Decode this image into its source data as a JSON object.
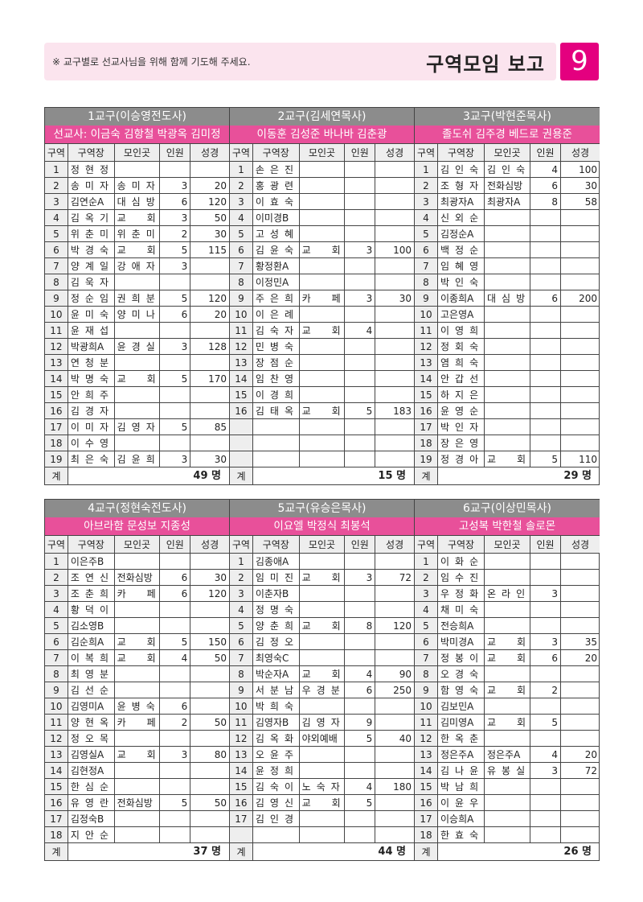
{
  "header": {
    "notice": "※ 교구별로 선교사님을 위해 함께 기도해 주세요.",
    "title": "구역모임 보고",
    "page_number": "9"
  },
  "columns": [
    "구역",
    "구역장",
    "모인곳",
    "인원",
    "성경"
  ],
  "total_label": "계",
  "blocks": [
    {
      "rows_shown": 19,
      "sections": [
        {
          "title": "1교구(이승영전도사)",
          "missionaries": "선교사: 이금숙 김항철 박광옥 김미정",
          "total": "49 명",
          "rows": [
            [
              "1",
              "정현정",
              "",
              "",
              ""
            ],
            [
              "2",
              "송미자",
              "송미자",
              "3",
              "20"
            ],
            [
              "3",
              "김연순A",
              "대심방",
              "6",
              "120"
            ],
            [
              "4",
              "김옥기",
              "교회",
              "3",
              "50"
            ],
            [
              "5",
              "위춘미",
              "위춘미",
              "2",
              "30"
            ],
            [
              "6",
              "박경숙",
              "교회",
              "5",
              "115"
            ],
            [
              "7",
              "양계일",
              "강애자",
              "3",
              ""
            ],
            [
              "8",
              "김욱자",
              "",
              "",
              ""
            ],
            [
              "9",
              "정순임",
              "권희분",
              "5",
              "120"
            ],
            [
              "10",
              "윤미숙",
              "양미나",
              "6",
              "20"
            ],
            [
              "11",
              "윤재섭",
              "",
              "",
              ""
            ],
            [
              "12",
              "박광희A",
              "윤경실",
              "3",
              "128"
            ],
            [
              "13",
              "연청분",
              "",
              "",
              ""
            ],
            [
              "14",
              "박명숙",
              "교회",
              "5",
              "170"
            ],
            [
              "15",
              "안희주",
              "",
              "",
              ""
            ],
            [
              "16",
              "김경자",
              "",
              "",
              ""
            ],
            [
              "17",
              "이미자",
              "김영자",
              "5",
              "85"
            ],
            [
              "18",
              "이수영",
              "",
              "",
              ""
            ],
            [
              "19",
              "최은숙",
              "김윤희",
              "3",
              "30"
            ]
          ]
        },
        {
          "title": "2교구(김세연목사)",
          "missionaries": "이동훈 김성준 바나바 김춘광",
          "total": "15 명",
          "rows": [
            [
              "1",
              "손은진",
              "",
              "",
              ""
            ],
            [
              "2",
              "홍광련",
              "",
              "",
              ""
            ],
            [
              "3",
              "이효숙",
              "",
              "",
              ""
            ],
            [
              "4",
              "이미경B",
              "",
              "",
              ""
            ],
            [
              "5",
              "고성혜",
              "",
              "",
              ""
            ],
            [
              "6",
              "김윤숙",
              "교회",
              "3",
              "100"
            ],
            [
              "7",
              "황정환A",
              "",
              "",
              ""
            ],
            [
              "8",
              "이정민A",
              "",
              "",
              ""
            ],
            [
              "9",
              "주은희",
              "카페",
              "3",
              "30"
            ],
            [
              "10",
              "이은례",
              "",
              "",
              ""
            ],
            [
              "11",
              "김숙자",
              "교회",
              "4",
              ""
            ],
            [
              "12",
              "민병숙",
              "",
              "",
              ""
            ],
            [
              "13",
              "장점순",
              "",
              "",
              ""
            ],
            [
              "14",
              "임찬영",
              "",
              "",
              ""
            ],
            [
              "15",
              "이경희",
              "",
              "",
              ""
            ],
            [
              "16",
              "김태옥",
              "교회",
              "5",
              "183"
            ]
          ]
        },
        {
          "title": "3교구(박현준목사)",
          "missionaries": "졸도쉬 김주경 베드로 권용준",
          "total": "29 명",
          "rows": [
            [
              "1",
              "김인숙",
              "김인숙",
              "4",
              "100"
            ],
            [
              "2",
              "조형자",
              "전화심방",
              "6",
              "30"
            ],
            [
              "3",
              "최광자A",
              "최광자A",
              "8",
              "58"
            ],
            [
              "4",
              "신외순",
              "",
              "",
              ""
            ],
            [
              "5",
              "김정순A",
              "",
              "",
              ""
            ],
            [
              "6",
              "백정순",
              "",
              "",
              ""
            ],
            [
              "7",
              "임혜영",
              "",
              "",
              ""
            ],
            [
              "8",
              "박인숙",
              "",
              "",
              ""
            ],
            [
              "9",
              "이종희A",
              "대심방",
              "6",
              "200"
            ],
            [
              "10",
              "고은영A",
              "",
              "",
              ""
            ],
            [
              "11",
              "이영희",
              "",
              "",
              ""
            ],
            [
              "12",
              "정회숙",
              "",
              "",
              ""
            ],
            [
              "13",
              "염희숙",
              "",
              "",
              ""
            ],
            [
              "14",
              "안갑선",
              "",
              "",
              ""
            ],
            [
              "15",
              "하지은",
              "",
              "",
              ""
            ],
            [
              "16",
              "윤영순",
              "",
              "",
              ""
            ],
            [
              "17",
              "박인자",
              "",
              "",
              ""
            ],
            [
              "18",
              "장은영",
              "",
              "",
              ""
            ],
            [
              "19",
              "정경아",
              "교회",
              "5",
              "110"
            ]
          ]
        }
      ]
    },
    {
      "rows_shown": 18,
      "sections": [
        {
          "title": "4교구(정현숙전도사)",
          "missionaries": "아브라함  문성보 지종성",
          "total": "37 명",
          "rows": [
            [
              "1",
              "이은주B",
              "",
              "",
              ""
            ],
            [
              "2",
              "조연신",
              "전화심방",
              "6",
              "30"
            ],
            [
              "3",
              "조춘희",
              "카페",
              "6",
              "120"
            ],
            [
              "4",
              "황덕이",
              "",
              "",
              ""
            ],
            [
              "5",
              "김소영B",
              "",
              "",
              ""
            ],
            [
              "6",
              "김순희A",
              "교회",
              "5",
              "150"
            ],
            [
              "7",
              "이복희",
              "교회",
              "4",
              "50"
            ],
            [
              "8",
              "최영분",
              "",
              "",
              ""
            ],
            [
              "9",
              "김선순",
              "",
              "",
              ""
            ],
            [
              "10",
              "김영미A",
              "윤병숙",
              "6",
              ""
            ],
            [
              "11",
              "양현옥",
              "카페",
              "2",
              "50"
            ],
            [
              "12",
              "정오목",
              "",
              "",
              ""
            ],
            [
              "13",
              "김영실A",
              "교회",
              "3",
              "80"
            ],
            [
              "14",
              "김현정A",
              "",
              "",
              ""
            ],
            [
              "15",
              "한심순",
              "",
              "",
              ""
            ],
            [
              "16",
              "유영란",
              "전화심방",
              "5",
              "50"
            ],
            [
              "17",
              "김정숙B",
              "",
              "",
              ""
            ],
            [
              "18",
              "지안순",
              "",
              "",
              ""
            ]
          ]
        },
        {
          "title": "5교구(유승은목사)",
          "missionaries": "이요엘 박정식 최봉석",
          "total": "44 명",
          "rows": [
            [
              "1",
              "김종애A",
              "",
              "",
              ""
            ],
            [
              "2",
              "임미진",
              "교회",
              "3",
              "72"
            ],
            [
              "3",
              "이춘자B",
              "",
              "",
              ""
            ],
            [
              "4",
              "정명숙",
              "",
              "",
              ""
            ],
            [
              "5",
              "양춘희",
              "교회",
              "8",
              "120"
            ],
            [
              "6",
              "김정오",
              "",
              "",
              ""
            ],
            [
              "7",
              "최영숙C",
              "",
              "",
              ""
            ],
            [
              "8",
              "박순자A",
              "교회",
              "4",
              "90"
            ],
            [
              "9",
              "서분남",
              "우경분",
              "6",
              "250"
            ],
            [
              "10",
              "박희숙",
              "",
              "",
              ""
            ],
            [
              "11",
              "김영자B",
              "김영자",
              "9",
              ""
            ],
            [
              "12",
              "김옥화",
              "야외예배",
              "5",
              "40"
            ],
            [
              "13",
              "오윤주",
              "",
              "",
              ""
            ],
            [
              "14",
              "윤정희",
              "",
              "",
              ""
            ],
            [
              "15",
              "김숙이",
              "노숙자",
              "4",
              "180"
            ],
            [
              "16",
              "김영신",
              "교회",
              "5",
              ""
            ],
            [
              "17",
              "김인경",
              "",
              "",
              ""
            ]
          ]
        },
        {
          "title": "6교구(이상민목사)",
          "missionaries": "고성복 박한철 솔로몬",
          "total": "26 명",
          "rows": [
            [
              "1",
              "이화순",
              "",
              "",
              ""
            ],
            [
              "2",
              "임수진",
              "",
              "",
              ""
            ],
            [
              "3",
              "우정화",
              "온라인",
              "3",
              ""
            ],
            [
              "4",
              "채미숙",
              "",
              "",
              ""
            ],
            [
              "5",
              "전승희A",
              "",
              "",
              ""
            ],
            [
              "6",
              "박미경A",
              "교회",
              "3",
              "35"
            ],
            [
              "7",
              "정봉이",
              "교회",
              "6",
              "20"
            ],
            [
              "8",
              "오경숙",
              "",
              "",
              ""
            ],
            [
              "9",
              "함영숙",
              "교회",
              "2",
              ""
            ],
            [
              "10",
              "김보민A",
              "",
              "",
              ""
            ],
            [
              "11",
              "김미영A",
              "교회",
              "5",
              ""
            ],
            [
              "12",
              "한옥춘",
              "",
              "",
              ""
            ],
            [
              "13",
              "정은주A",
              "정은주A",
              "4",
              "20"
            ],
            [
              "14",
              "김나윤",
              "유봉실",
              "3",
              "72"
            ],
            [
              "15",
              "박남희",
              "",
              "",
              ""
            ],
            [
              "16",
              "이윤우",
              "",
              "",
              ""
            ],
            [
              "17",
              "이승희A",
              "",
              "",
              ""
            ],
            [
              "18",
              "한효숙",
              "",
              "",
              ""
            ]
          ]
        }
      ]
    }
  ]
}
